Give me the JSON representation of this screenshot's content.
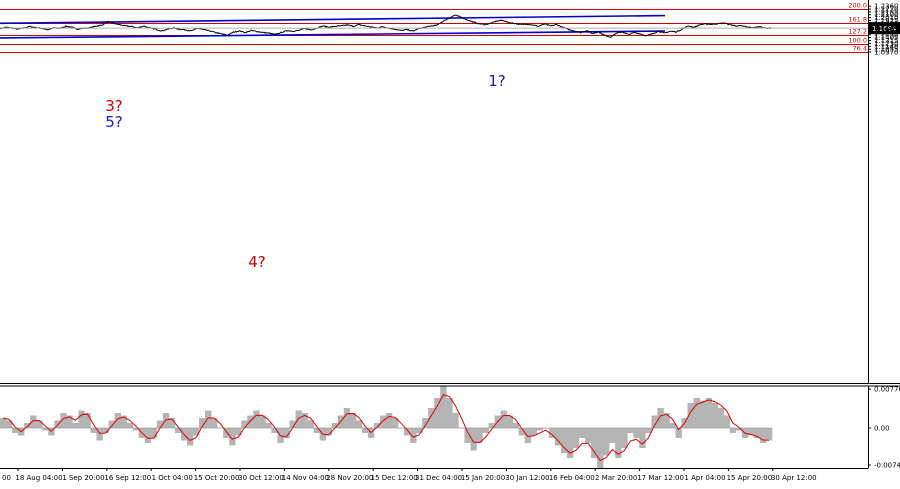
{
  "chart_data": [
    {
      "type": "line",
      "title": "",
      "ylim": [
        0.0935,
        1.2425
      ],
      "x_tick_labels": [
        "18 Aug 04:00",
        "1 Sep 20:00",
        "16 Sep 12:00",
        "1 Oct 04:00",
        "15 Oct 20:00",
        "30 Oct 12:00",
        "14 Nov 04:00",
        "28 Nov 20:00",
        "15 Dec 12:00",
        "31 Dec 04:00",
        "15 Jan 20:00",
        "30 Jan 12:00",
        "16 Feb 04:00",
        "2 Mar 20:00",
        "17 Mar 12:00",
        "1 Apr 04:00",
        "15 Apr 20:00",
        "30 Apr 12:00"
      ],
      "first_tick_fragment": "00",
      "y_tick_labels": [
        "1.2360",
        "1.2270",
        "1.2185",
        "1.2100",
        "1.2010",
        "1.1925",
        "1.1835",
        "1.1750",
        "1.1665",
        "1.1580",
        "1.1490",
        "1.1405",
        "1.1315",
        "1.1230",
        "1.1140",
        "1.1055",
        "1.0970"
      ],
      "current_price": "1.1694",
      "series": [
        {
          "values": [
            1.168,
            1.172,
            1.1695,
            1.166,
            1.17,
            1.1745,
            1.171,
            1.169,
            1.164,
            1.17,
            1.1685,
            1.175,
            1.172,
            1.1665,
            1.169,
            1.17,
            1.1755,
            1.178,
            1.189,
            1.184,
            1.1795,
            1.176,
            1.1745,
            1.17,
            1.176,
            1.17,
            1.166,
            1.161,
            1.166,
            1.17,
            1.166,
            1.164,
            1.161,
            1.169,
            1.165,
            1.161,
            1.156,
            1.152,
            1.148,
            1.157,
            1.161,
            1.156,
            1.162,
            1.159,
            1.156,
            1.154,
            1.15,
            1.156,
            1.162,
            1.16,
            1.163,
            1.168,
            1.164,
            1.17,
            1.176,
            1.172,
            1.175,
            1.176,
            1.179,
            1.175,
            1.18,
            1.176,
            1.173,
            1.17,
            1.174,
            1.169,
            1.166,
            1.162,
            1.165,
            1.16,
            1.168,
            1.172,
            1.176,
            1.178,
            1.19,
            1.199,
            1.209,
            1.203,
            1.195,
            1.188,
            1.183,
            1.18,
            1.184,
            1.191,
            1.193,
            1.186,
            1.184,
            1.18,
            1.182,
            1.179,
            1.175,
            1.182,
            1.176,
            1.18,
            1.172,
            1.165,
            1.161,
            1.156,
            1.162,
            1.153,
            1.158,
            1.148,
            1.142,
            1.154,
            1.158,
            1.15,
            1.156,
            1.152,
            1.146,
            1.152,
            1.16,
            1.154,
            1.16,
            1.158,
            1.166,
            1.176,
            1.172,
            1.18,
            1.182,
            1.181,
            1.183,
            1.185,
            1.18,
            1.176,
            1.176,
            1.172,
            1.171,
            1.174,
            1.169,
            1.17
          ]
        }
      ],
      "fib_levels": [
        {
          "label": "200.0",
          "value": 1.227
        },
        {
          "label": "161.8",
          "value": 1.1853
        },
        {
          "label": "127.2",
          "value": 1.1495
        },
        {
          "label": "100.0",
          "value": 1.122
        },
        {
          "label": "76.4",
          "value": 1.0975
        }
      ],
      "wave_labels": [
        {
          "text": "3?",
          "color": "#d00000"
        },
        {
          "text": "5?",
          "color": "#1020d0"
        },
        {
          "text": "4?",
          "color": "#d00000"
        },
        {
          "text": "1?",
          "color": "#1020d0"
        }
      ],
      "channel_lines": [
        {
          "name": "upper",
          "color": "#0000cc"
        },
        {
          "name": "lower",
          "color": "#0000cc"
        }
      ],
      "level_color": "#d00000",
      "price_color": "#000000"
    },
    {
      "type": "area",
      "title": "",
      "ylim": [
        -0.008,
        0.0078
      ],
      "y_tick_labels": [
        "0.00776",
        "0.00",
        "-0.0074"
      ],
      "series": [
        {
          "name": "histogram",
          "color": "#b4b4b4",
          "values": [
            0.002,
            0.0015,
            -0.001,
            -0.0015,
            0.001,
            0.0025,
            0.0015,
            -0.0005,
            -0.0015,
            0.0015,
            0.003,
            0.0025,
            0.001,
            0.0035,
            0.003,
            -0.001,
            -0.0025,
            -0.001,
            0.0015,
            0.003,
            0.0025,
            0.001,
            -0.0005,
            -0.002,
            -0.003,
            -0.002,
            0.0015,
            0.003,
            0.002,
            -0.001,
            -0.0025,
            -0.0035,
            -0.0015,
            0.002,
            0.0035,
            0.002,
            0.0,
            -0.002,
            -0.0035,
            -0.0015,
            0.0015,
            0.0025,
            0.0035,
            0.0025,
            0.001,
            -0.001,
            -0.003,
            -0.002,
            0.0015,
            0.0035,
            0.003,
            0.0015,
            -0.001,
            -0.0025,
            -0.0015,
            0.001,
            0.0025,
            0.004,
            0.003,
            0.0015,
            -0.001,
            -0.002,
            0.001,
            0.0025,
            0.003,
            0.002,
            0.0,
            -0.0015,
            -0.003,
            -0.001,
            0.002,
            0.004,
            0.006,
            0.0085,
            0.006,
            0.003,
            0.0,
            -0.003,
            -0.0045,
            -0.003,
            -0.001,
            0.001,
            0.0025,
            0.0035,
            0.0025,
            0.001,
            -0.0015,
            -0.003,
            -0.0015,
            -0.0005,
            0.0,
            -0.002,
            -0.0035,
            -0.005,
            -0.006,
            -0.004,
            -0.002,
            -0.003,
            -0.006,
            -0.008,
            -0.0055,
            -0.003,
            -0.006,
            -0.004,
            -0.001,
            -0.002,
            -0.004,
            -0.001,
            0.0025,
            0.004,
            0.003,
            0.001,
            -0.002,
            0.002,
            0.005,
            0.006,
            0.0055,
            0.006,
            0.005,
            0.004,
            0.0025,
            -0.001,
            -0.0005,
            -0.002,
            -0.0015,
            -0.002,
            -0.003,
            -0.0025
          ]
        },
        {
          "name": "signal",
          "color": "#e00000"
        }
      ]
    }
  ]
}
